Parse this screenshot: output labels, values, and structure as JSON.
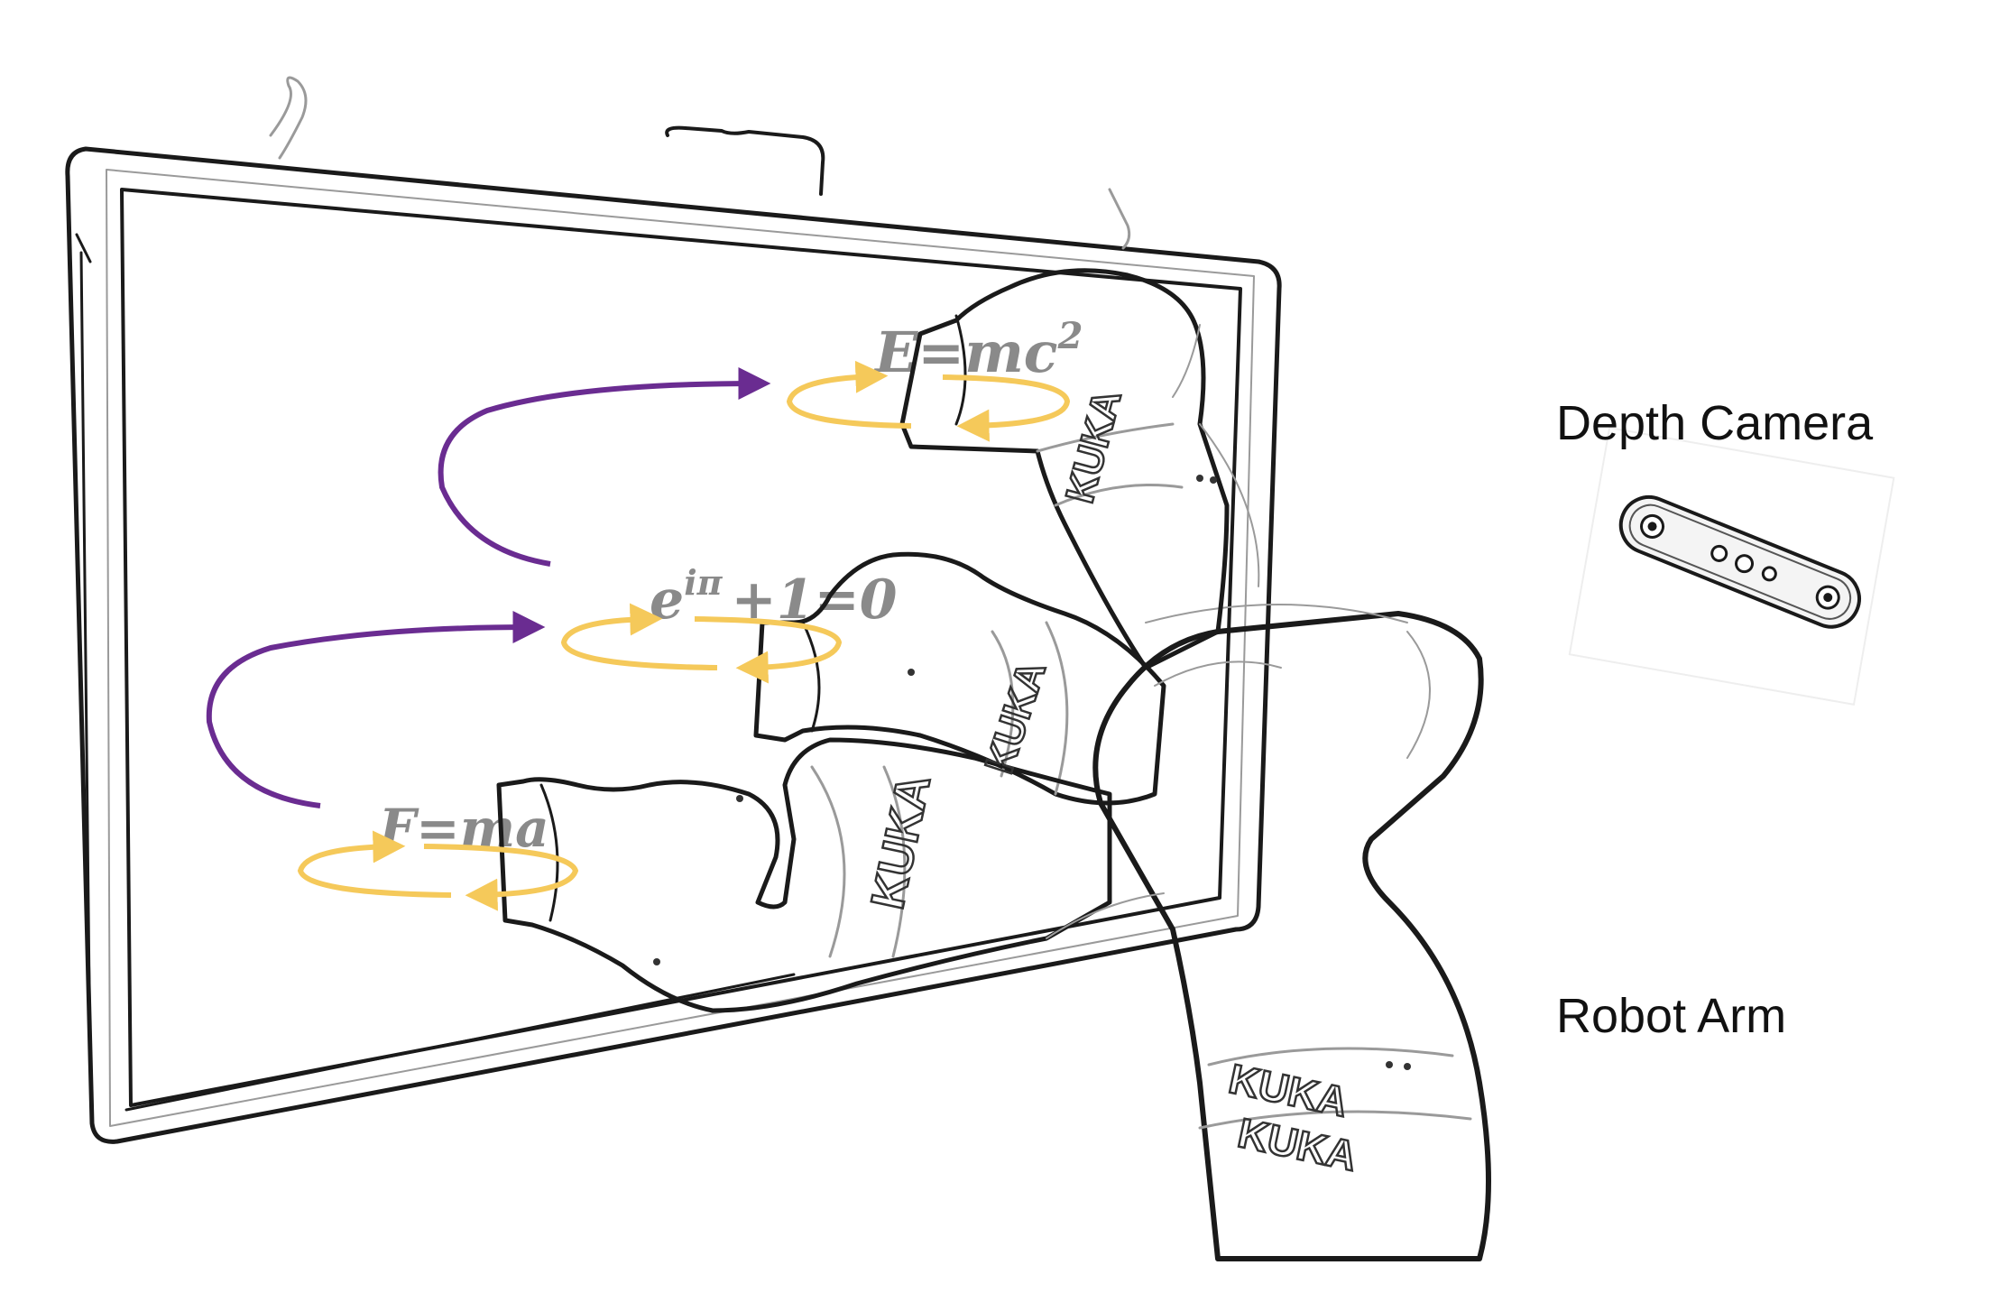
{
  "labels": {
    "depth_camera": "Depth Camera",
    "robot_arm": "Robot Arm"
  },
  "whiteboard": {
    "equations": [
      {
        "lhs": "E=mc",
        "sup": "2"
      },
      {
        "lhs": "e",
        "sup": "iπ",
        "rest": "+1=0"
      },
      {
        "lhs": "F=ma"
      }
    ]
  },
  "robot": {
    "brand_marks": [
      "KUKA",
      "KUKA",
      "KUKA",
      "KUKA",
      "KUKA"
    ]
  },
  "colors": {
    "transition_arrow": "#6a2c91",
    "wiping_loop": "#f5c95a",
    "sketch_line": "#1a1a1a"
  }
}
